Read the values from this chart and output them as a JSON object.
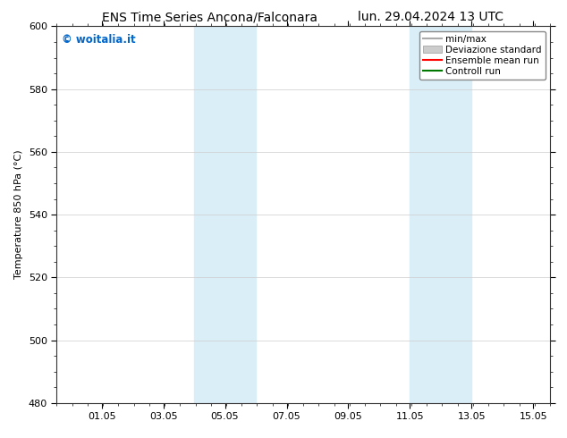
{
  "title_left": "ENS Time Series Ancona/Falconara",
  "title_right": "lun. 29.04.2024 13 UTC",
  "ylabel": "Temperature 850 hPa (°C)",
  "ylim": [
    480,
    600
  ],
  "yticks": [
    480,
    500,
    520,
    540,
    560,
    580,
    600
  ],
  "shaded_bands": [
    {
      "start_days": 4.458,
      "end_days": 5.458,
      "color": "#daeef8"
    },
    {
      "start_days": 5.458,
      "end_days": 6.458,
      "color": "#daeef8"
    },
    {
      "start_days": 11.458,
      "end_days": 12.458,
      "color": "#daeef8"
    },
    {
      "start_days": 12.458,
      "end_days": 13.458,
      "color": "#daeef8"
    }
  ],
  "xtick_labels": [
    "01.05",
    "03.05",
    "05.05",
    "07.05",
    "09.05",
    "11.05",
    "13.05",
    "15.05"
  ],
  "xtick_days": [
    1.458,
    3.458,
    5.458,
    7.458,
    9.458,
    11.458,
    13.458,
    15.458
  ],
  "total_days": 16.0,
  "watermark": "© woitalia.it",
  "watermark_color": "#0066cc",
  "legend_items": [
    {
      "label": "min/max",
      "color": "#aaaaaa",
      "type": "line"
    },
    {
      "label": "Deviazione standard",
      "color": "#cccccc",
      "type": "box"
    },
    {
      "label": "Ensemble mean run",
      "color": "#ff0000",
      "type": "line"
    },
    {
      "label": "Controll run",
      "color": "#007700",
      "type": "line"
    }
  ],
  "background_color": "#ffffff",
  "title_fontsize": 10,
  "axis_label_fontsize": 8,
  "tick_fontsize": 8,
  "legend_fontsize": 7.5
}
